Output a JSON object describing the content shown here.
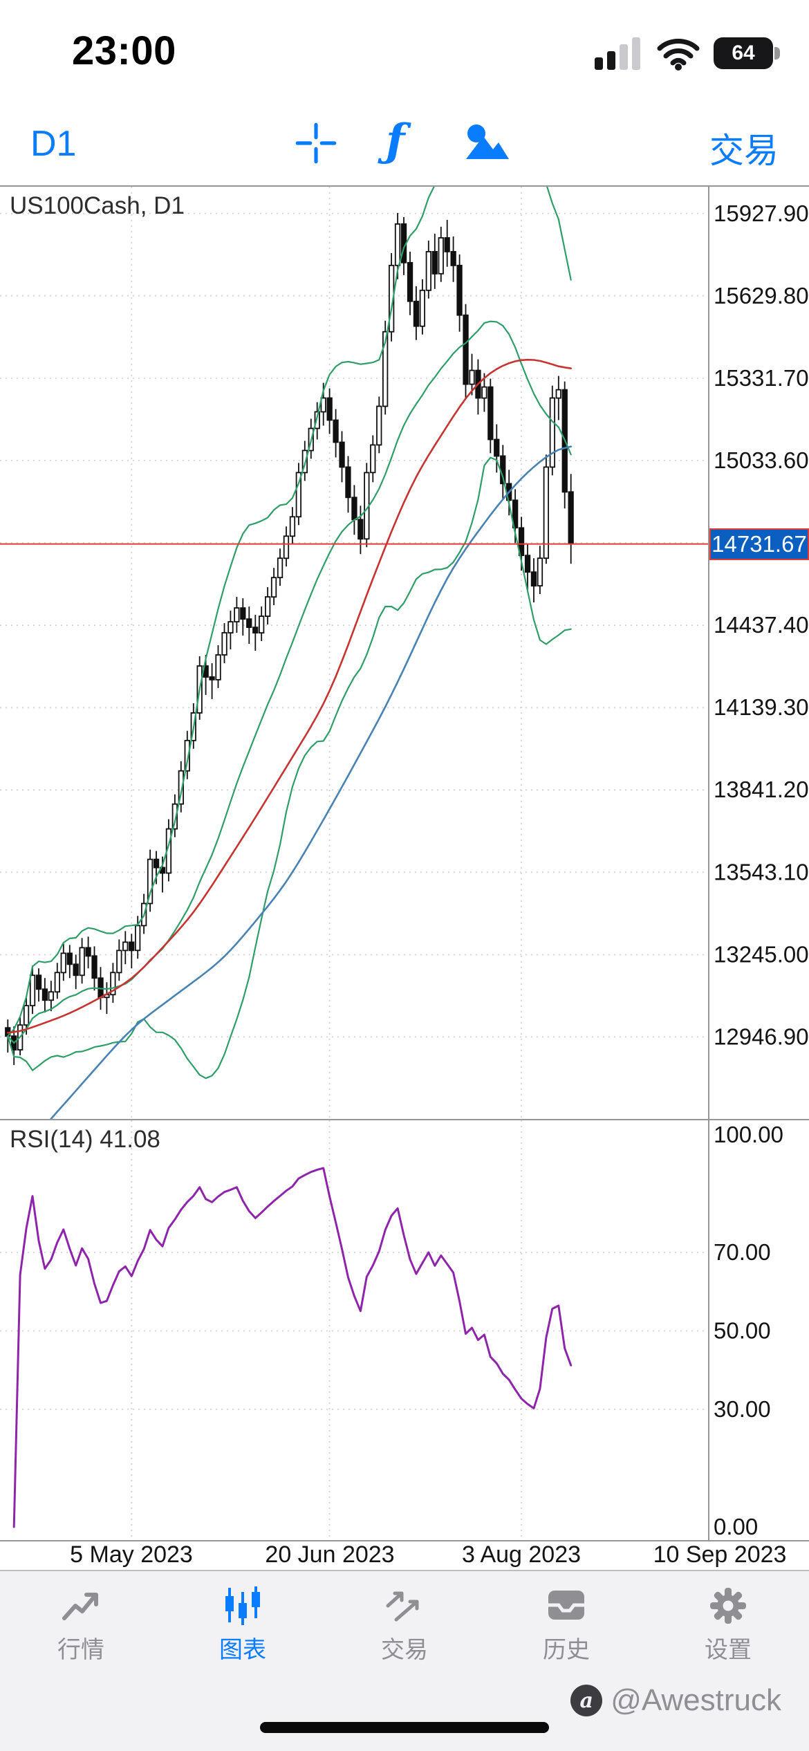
{
  "status_bar": {
    "time": "23:00",
    "battery_level": "64"
  },
  "toolbar": {
    "timeframe": "D1",
    "indicator_glyph": "ƒ",
    "trade_label": "交易"
  },
  "chart": {
    "symbol_label": "US100Cash, D1",
    "price_label": "14731.67"
  },
  "chart_data": {
    "type": "candlestick",
    "title": "US100Cash, D1",
    "timeframe": "D1",
    "ylim": [
      12650,
      16025
    ],
    "y_ticks": [
      "15927.90",
      "15629.80",
      "15331.70",
      "15033.60",
      "14735.50",
      "14437.40",
      "14139.30",
      "13841.20",
      "13543.10",
      "13245.00",
      "12946.90"
    ],
    "price_line": 14731.67,
    "price_label": "14731.67",
    "date_labels": [
      {
        "label": "5 May 2023",
        "index": 20
      },
      {
        "label": "20 Jun 2023",
        "index": 52
      },
      {
        "label": "3 Aug 2023",
        "index": 83
      },
      {
        "label": "10 Sep 2023",
        "index": 115
      }
    ],
    "candles": [
      [
        12980,
        13010,
        12890,
        12950
      ],
      [
        12950,
        12985,
        12845,
        12900
      ],
      [
        12900,
        13020,
        12880,
        12990
      ],
      [
        12990,
        13095,
        12955,
        13060
      ],
      [
        13060,
        13205,
        13030,
        13170
      ],
      [
        13170,
        13195,
        13075,
        13120
      ],
      [
        13120,
        13160,
        13035,
        13080
      ],
      [
        13080,
        13150,
        13040,
        13110
      ],
      [
        13110,
        13215,
        13085,
        13180
      ],
      [
        13180,
        13285,
        13150,
        13250
      ],
      [
        13250,
        13280,
        13160,
        13210
      ],
      [
        13210,
        13245,
        13120,
        13170
      ],
      [
        13170,
        13305,
        13140,
        13270
      ],
      [
        13270,
        13310,
        13195,
        13240
      ],
      [
        13240,
        13275,
        13115,
        13160
      ],
      [
        13160,
        13200,
        13045,
        13090
      ],
      [
        13090,
        13145,
        13030,
        13100
      ],
      [
        13100,
        13215,
        13070,
        13180
      ],
      [
        13180,
        13300,
        13150,
        13260
      ],
      [
        13260,
        13330,
        13210,
        13290
      ],
      [
        13290,
        13320,
        13195,
        13260
      ],
      [
        13260,
        13385,
        13230,
        13350
      ],
      [
        13350,
        13465,
        13320,
        13430
      ],
      [
        13430,
        13625,
        13400,
        13590
      ],
      [
        13590,
        13620,
        13500,
        13560
      ],
      [
        13560,
        13600,
        13470,
        13540
      ],
      [
        13540,
        13735,
        13510,
        13700
      ],
      [
        13700,
        13825,
        13670,
        13790
      ],
      [
        13790,
        13945,
        13760,
        13910
      ],
      [
        13910,
        14055,
        13880,
        14020
      ],
      [
        14020,
        14155,
        13990,
        14120
      ],
      [
        14120,
        14325,
        14095,
        14290
      ],
      [
        14290,
        14330,
        14185,
        14250
      ],
      [
        14250,
        14300,
        14170,
        14240
      ],
      [
        14240,
        14365,
        14210,
        14330
      ],
      [
        14330,
        14445,
        14300,
        14410
      ],
      [
        14410,
        14490,
        14350,
        14450
      ],
      [
        14450,
        14540,
        14410,
        14500
      ],
      [
        14500,
        14535,
        14400,
        14460
      ],
      [
        14460,
        14505,
        14370,
        14430
      ],
      [
        14430,
        14475,
        14345,
        14410
      ],
      [
        14410,
        14505,
        14380,
        14470
      ],
      [
        14470,
        14575,
        14440,
        14540
      ],
      [
        14540,
        14645,
        14510,
        14610
      ],
      [
        14610,
        14715,
        14580,
        14680
      ],
      [
        14680,
        14795,
        14650,
        14760
      ],
      [
        14760,
        14865,
        14730,
        14830
      ],
      [
        14830,
        15025,
        14800,
        14990
      ],
      [
        14990,
        15105,
        14960,
        15070
      ],
      [
        15070,
        15185,
        15040,
        15150
      ],
      [
        15150,
        15245,
        15110,
        15210
      ],
      [
        15210,
        15315,
        15160,
        15260
      ],
      [
        15260,
        15295,
        15130,
        15180
      ],
      [
        15180,
        15220,
        15045,
        15100
      ],
      [
        15100,
        15140,
        14955,
        15010
      ],
      [
        15010,
        15050,
        14845,
        14900
      ],
      [
        14900,
        14945,
        14765,
        14820
      ],
      [
        14820,
        14870,
        14695,
        14750
      ],
      [
        14750,
        15025,
        14720,
        14990
      ],
      [
        14990,
        15125,
        14955,
        15090
      ],
      [
        15090,
        15265,
        15060,
        15230
      ],
      [
        15230,
        15540,
        15200,
        15500
      ],
      [
        15500,
        15785,
        15465,
        15740
      ],
      [
        15740,
        15930,
        15690,
        15890
      ],
      [
        15890,
        15915,
        15705,
        15750
      ],
      [
        15750,
        15790,
        15560,
        15610
      ],
      [
        15610,
        15665,
        15470,
        15520
      ],
      [
        15520,
        15690,
        15490,
        15650
      ],
      [
        15650,
        15830,
        15620,
        15790
      ],
      [
        15790,
        15855,
        15655,
        15710
      ],
      [
        15710,
        15880,
        15680,
        15840
      ],
      [
        15840,
        15905,
        15735,
        15790
      ],
      [
        15790,
        15845,
        15680,
        15740
      ],
      [
        15740,
        15780,
        15500,
        15560
      ],
      [
        15560,
        15600,
        15255,
        15310
      ],
      [
        15310,
        15420,
        15270,
        15360
      ],
      [
        15360,
        15400,
        15200,
        15260
      ],
      [
        15260,
        15350,
        15210,
        15300
      ],
      [
        15300,
        15330,
        15060,
        15110
      ],
      [
        15110,
        15165,
        14990,
        15050
      ],
      [
        15050,
        15090,
        14895,
        14950
      ],
      [
        14950,
        15000,
        14835,
        14890
      ],
      [
        14890,
        14930,
        14735,
        14790
      ],
      [
        14790,
        14830,
        14635,
        14690
      ],
      [
        14690,
        14730,
        14560,
        14630
      ],
      [
        14630,
        14680,
        14520,
        14580
      ],
      [
        14580,
        14725,
        14550,
        14680
      ],
      [
        14680,
        15055,
        14660,
        15010
      ],
      [
        15010,
        15305,
        14980,
        15260
      ],
      [
        15260,
        15340,
        15180,
        15290
      ],
      [
        15290,
        15320,
        14860,
        14920
      ],
      [
        14920,
        14985,
        14660,
        14731.67
      ]
    ],
    "indicators": {
      "bollinger": {
        "period": 20,
        "deviation": 2,
        "color": "#2e9e68"
      },
      "ma_red": {
        "color": "#c53430",
        "anchors": [
          [
            0,
            12950
          ],
          [
            10,
            13030
          ],
          [
            20,
            13150
          ],
          [
            30,
            13390
          ],
          [
            40,
            13740
          ],
          [
            46,
            13960
          ],
          [
            52,
            14180
          ],
          [
            58,
            14550
          ],
          [
            62,
            14780
          ],
          [
            66,
            14990
          ],
          [
            70,
            15120
          ],
          [
            74,
            15270
          ],
          [
            78,
            15360
          ],
          [
            82,
            15400
          ],
          [
            85,
            15405
          ],
          [
            88,
            15385
          ],
          [
            91,
            15350
          ]
        ]
      },
      "ma_blue": {
        "color": "#4682b4",
        "anchors": [
          [
            5,
            12600
          ],
          [
            20,
            12980
          ],
          [
            35,
            13230
          ],
          [
            45,
            13500
          ],
          [
            53,
            13810
          ],
          [
            62,
            14180
          ],
          [
            71,
            14620
          ],
          [
            78,
            14840
          ],
          [
            83,
            14975
          ],
          [
            87,
            15050
          ],
          [
            91,
            15105
          ]
        ]
      },
      "rsi": {
        "label": "RSI(14) 41.08",
        "period": 14,
        "value": 41.08,
        "color": "#8e24aa",
        "ylim": [
          0,
          100
        ],
        "y_ticks": [
          "100.00",
          "70.00",
          "50.00",
          "30.00",
          "0.00"
        ],
        "levels": [
          70,
          50,
          30
        ]
      }
    },
    "colors": {
      "bullish": "#ffffff",
      "bearish": "#111111",
      "outline": "#111111",
      "grid": "#d6d6d6",
      "price_line": "#e03a34",
      "price_label_bg": "#0b5fc0",
      "price_label_text": "#ffffff"
    }
  },
  "tab_bar": {
    "items": [
      {
        "label": "行情",
        "active": false
      },
      {
        "label": "图表",
        "active": true
      },
      {
        "label": "交易",
        "active": false
      },
      {
        "label": "历史",
        "active": false
      },
      {
        "label": "设置",
        "active": false
      }
    ]
  },
  "watermark": {
    "handle": "@Awestruck"
  }
}
